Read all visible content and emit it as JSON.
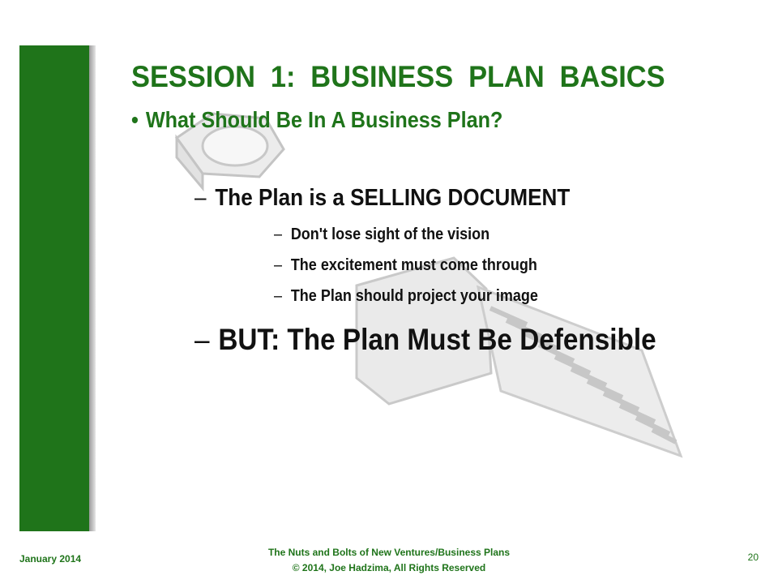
{
  "slide": {
    "title": "SESSION 1:   BUSINESS PLAN BASICS",
    "subtitle_bullet": "•",
    "subtitle": "What Should Be In A Business Plan?",
    "dash": "–",
    "point1": "The Plan is a SELLING DOCUMENT",
    "subpoints": [
      "Don't lose sight of the vision",
      "The excitement must come through",
      "The Plan should project your image"
    ],
    "point2": "BUT:  The Plan Must Be Defensible"
  },
  "footer": {
    "date": "January 2014",
    "line1": "The Nuts and Bolts of New Ventures/Business Plans",
    "line2": "© 2014, Joe Hadzima, All Rights Reserved",
    "page": "20"
  },
  "colors": {
    "green": "#1f741a",
    "text": "#111111",
    "watermark": "#c8c8c8"
  }
}
